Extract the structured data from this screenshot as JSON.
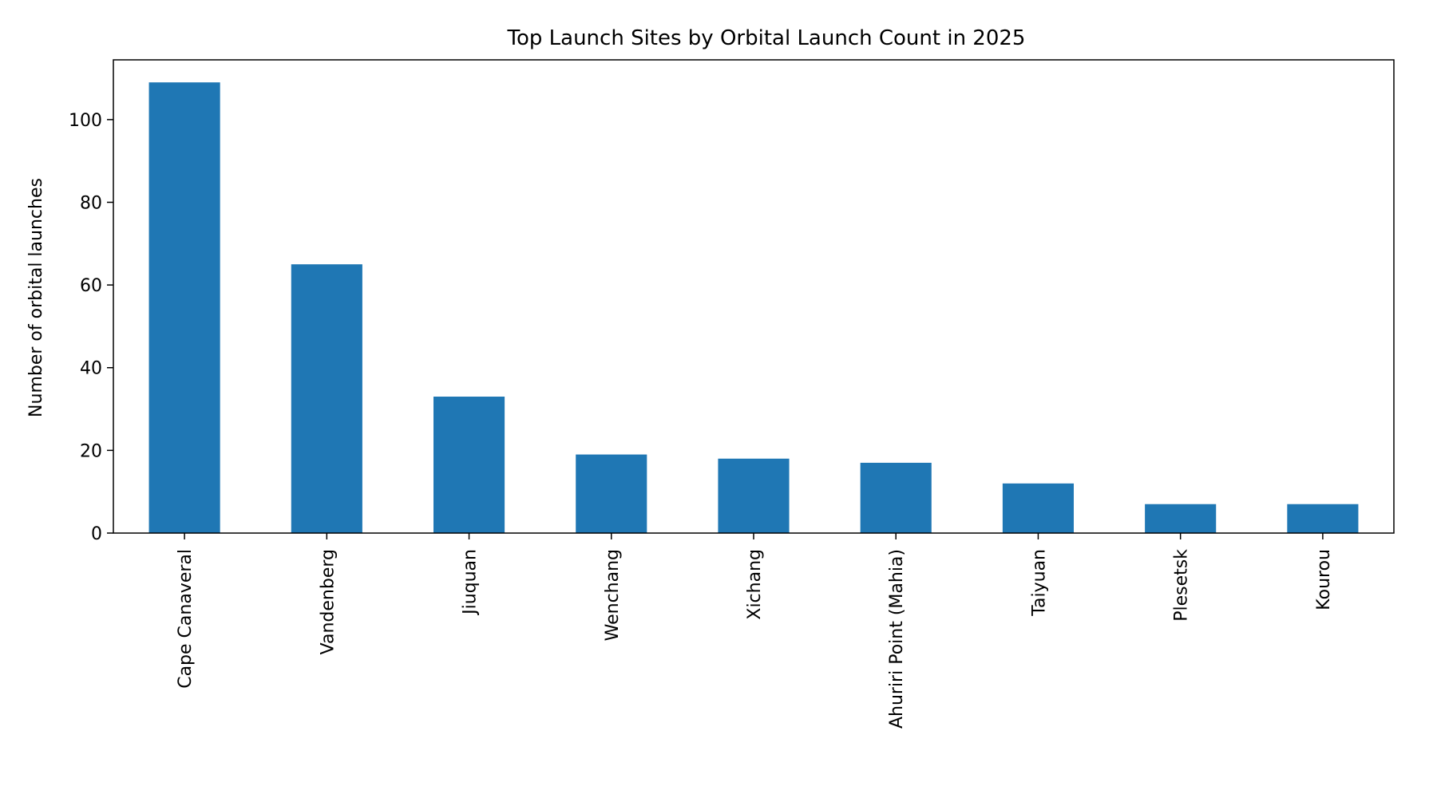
{
  "chart_data": {
    "type": "bar",
    "title": "Top Launch Sites by Orbital Launch Count in 2025",
    "xlabel": "",
    "ylabel": "Number of orbital launches",
    "categories": [
      "Cape Canaveral",
      "Vandenberg",
      "Jiuquan",
      "Wenchang",
      "Xichang",
      "Ahuriri Point (Mahia)",
      "Taiyuan",
      "Plesetsk",
      "Kourou"
    ],
    "values": [
      109,
      65,
      33,
      19,
      18,
      17,
      12,
      7,
      7
    ],
    "ylim": [
      0,
      114.45
    ],
    "yticks": [
      0,
      20,
      40,
      60,
      80,
      100
    ],
    "grid": false,
    "bar_color": "#1f77b4"
  }
}
